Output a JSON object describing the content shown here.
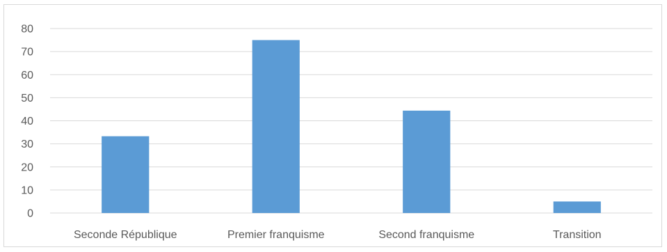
{
  "chart_data": {
    "type": "bar",
    "categories": [
      "Seconde République",
      "Premier franquisme",
      "Second franquisme",
      "Transition"
    ],
    "values": [
      33.3,
      75,
      44.4,
      5
    ],
    "ylim": [
      0,
      80
    ],
    "yticks": [
      0,
      10,
      20,
      30,
      40,
      50,
      60,
      70,
      80
    ],
    "grid": true,
    "legend": "none",
    "colors": {
      "bar": "#5b9bd5",
      "grid": "#d9d9d9",
      "text": "#595959"
    }
  }
}
